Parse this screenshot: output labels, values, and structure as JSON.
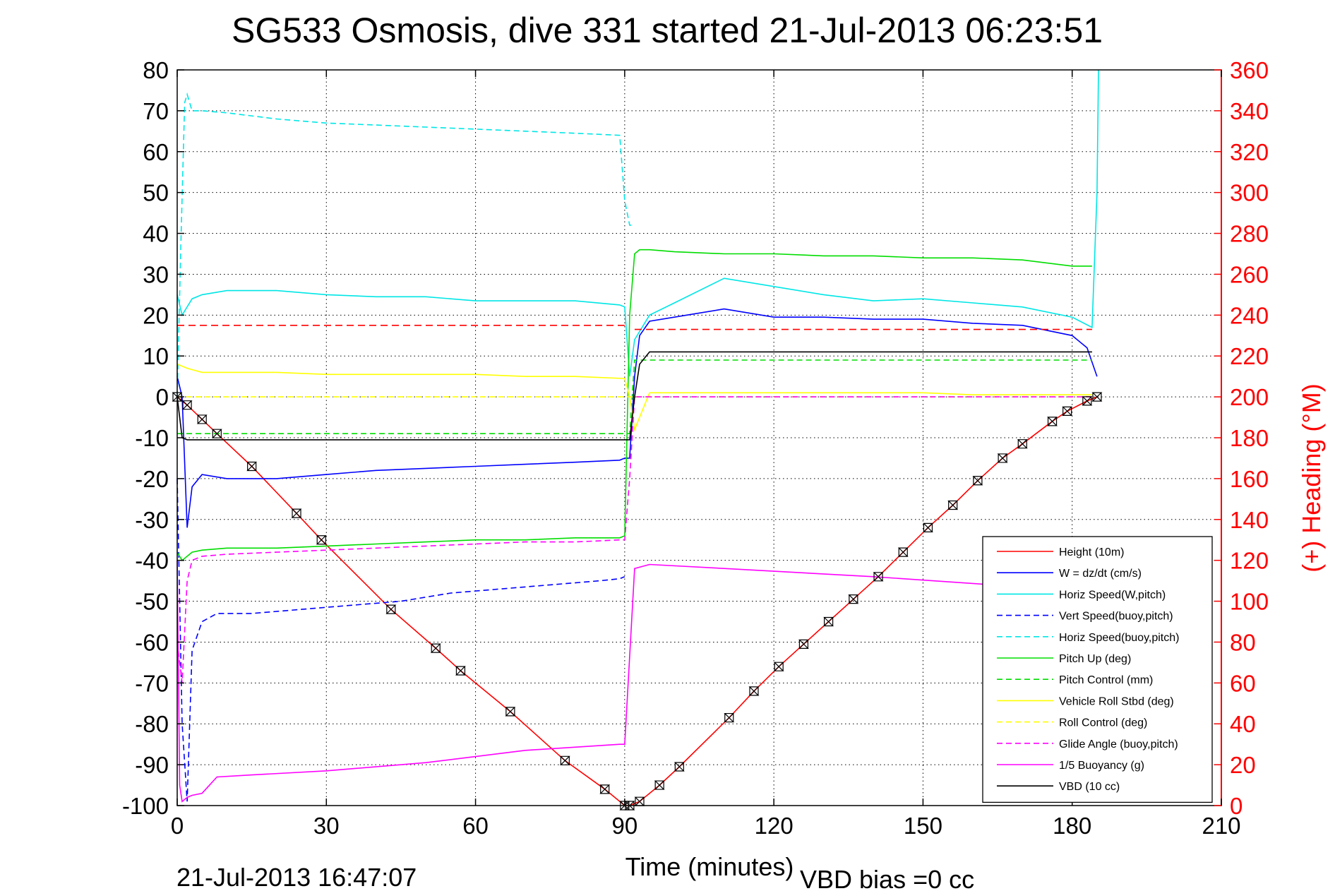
{
  "chart_data": {
    "type": "line",
    "title": "SG533 Osmosis, dive 331 started 21-Jul-2013 06:23:51",
    "xlabel": "Time (minutes)",
    "ylabel_right": "(+) Heading (°M)",
    "footer_date": "21-Jul-2013 16:47:07",
    "footer_vbd": "VBD bias =0 cc",
    "xlim": [
      0,
      210
    ],
    "ylim": [
      -100,
      80
    ],
    "ylim_right": [
      0,
      360
    ],
    "xticks": [
      0,
      30,
      60,
      90,
      120,
      150,
      180,
      210
    ],
    "yticks": [
      -100,
      -90,
      -80,
      -70,
      -60,
      -50,
      -40,
      -30,
      -20,
      -10,
      0,
      10,
      20,
      30,
      40,
      50,
      60,
      70,
      80
    ],
    "yticks_right": [
      0,
      20,
      40,
      60,
      80,
      100,
      120,
      140,
      160,
      180,
      200,
      220,
      240,
      260,
      280,
      300,
      320,
      340,
      360
    ],
    "grid": true,
    "legend_position": "lower-right",
    "heading_mean_dive": 235,
    "heading_mean_climb": 233,
    "series": [
      {
        "name": "Height (10m)",
        "color": "#ff0000",
        "dash": "solid",
        "x": [
          0,
          2,
          5,
          8,
          15,
          24,
          29,
          43,
          52,
          57,
          67,
          78,
          86,
          90,
          91,
          93,
          97,
          101,
          111,
          116,
          121,
          126,
          131,
          136,
          141,
          146,
          151,
          156,
          161,
          166,
          170,
          176,
          179,
          183,
          185
        ],
        "y": [
          0,
          -2,
          -5.5,
          -9,
          -17,
          -28.5,
          -35,
          -52,
          -61.5,
          -67,
          -77,
          -89,
          -96,
          -100,
          -100,
          -99,
          -95,
          -90.5,
          -78.5,
          -72,
          -66,
          -60.5,
          -55,
          -49.5,
          -44,
          -38,
          -32,
          -26.5,
          -20.5,
          -15,
          -11.5,
          -6,
          -3.5,
          -1,
          0
        ]
      },
      {
        "name": "W = dz/dt (cm/s)",
        "color": "#0000ff",
        "dash": "solid",
        "x": [
          0,
          1,
          2,
          3,
          5,
          10,
          20,
          30,
          40,
          50,
          60,
          70,
          80,
          89,
          90,
          91,
          92,
          93,
          95,
          100,
          110,
          120,
          130,
          140,
          150,
          160,
          170,
          180,
          183,
          185
        ],
        "y": [
          5,
          0,
          -32,
          -22,
          -19,
          -20,
          -20,
          -19,
          -18,
          -17.5,
          -17,
          -16.5,
          -16,
          -15.5,
          -15,
          -15,
          5,
          15,
          18.5,
          19.5,
          21.5,
          19.5,
          19.5,
          19,
          19,
          18,
          17.5,
          15,
          12,
          5
        ]
      },
      {
        "name": "Horiz Speed(W,pitch)",
        "color": "#00e6e6",
        "dash": "solid",
        "x": [
          0,
          1,
          3,
          5,
          10,
          20,
          30,
          40,
          50,
          60,
          70,
          80,
          89,
          90,
          91,
          92,
          95,
          100,
          110,
          120,
          130,
          140,
          150,
          160,
          170,
          180,
          184,
          185,
          185.3
        ],
        "y": [
          25,
          20,
          24,
          25,
          26,
          26,
          25,
          24.5,
          24.5,
          23.5,
          23.5,
          23.5,
          22.5,
          22,
          5,
          14,
          20,
          23,
          29,
          27,
          25,
          23.5,
          24,
          23,
          22,
          19.5,
          17,
          50,
          80
        ]
      },
      {
        "name": "Vert Speed(buoy,pitch)",
        "color": "#0000ff",
        "dash": "dashed",
        "x": [
          0,
          1,
          2,
          3,
          5,
          8,
          15,
          25,
          35,
          45,
          55,
          65,
          75,
          85,
          89,
          90
        ],
        "y": [
          -20,
          -80,
          -99,
          -62,
          -55,
          -53,
          -53,
          -52,
          -51,
          -50,
          -48,
          -47,
          -46,
          -45,
          -44.5,
          -44
        ]
      },
      {
        "name": "Horiz Speed(buoy,pitch)",
        "color": "#00e6e6",
        "dash": "dashed",
        "x": [
          0,
          0.8,
          1.5,
          2,
          3,
          5,
          10,
          20,
          30,
          40,
          50,
          60,
          70,
          80,
          89,
          90,
          91,
          92
        ],
        "y": [
          0,
          40,
          72,
          74,
          70,
          70,
          69.5,
          68,
          67,
          66.5,
          66,
          65.5,
          65,
          64.5,
          64,
          48,
          42,
          42
        ]
      },
      {
        "name": "Pitch Up (deg)",
        "color": "#00dd00",
        "dash": "solid",
        "x": [
          0,
          1,
          2,
          3,
          5,
          10,
          20,
          30,
          40,
          50,
          60,
          70,
          80,
          89,
          90,
          91,
          92,
          93,
          95,
          100,
          110,
          120,
          130,
          140,
          150,
          160,
          170,
          180,
          184
        ],
        "y": [
          -38,
          -40,
          -39,
          -38,
          -37.5,
          -37,
          -37,
          -36.5,
          -36,
          -35.5,
          -35,
          -35,
          -34.5,
          -34.5,
          -34,
          20,
          35,
          36,
          36,
          35.5,
          35,
          35,
          34.5,
          34.5,
          34,
          34,
          33.5,
          32,
          32
        ]
      },
      {
        "name": "Pitch Control (mm)",
        "color": "#00dd00",
        "dash": "dashed",
        "x": [
          0,
          1,
          2,
          90,
          91,
          92,
          184
        ],
        "y": [
          -9,
          -9,
          -9,
          -9,
          -9,
          9,
          9
        ]
      },
      {
        "name": "Vehicle Roll Stbd (deg)",
        "color": "#ffff00",
        "dash": "solid",
        "x": [
          0,
          2,
          5,
          10,
          20,
          30,
          40,
          50,
          60,
          70,
          80,
          90,
          91,
          92,
          95,
          100,
          110,
          120,
          130,
          140,
          150,
          160,
          170,
          180,
          184
        ],
        "y": [
          8,
          7,
          6,
          6,
          6,
          5.5,
          5.5,
          5.5,
          5.5,
          5,
          5,
          4.5,
          0,
          -8,
          1,
          1,
          1,
          1,
          1,
          1,
          1,
          0.5,
          0.5,
          0.5,
          0.5
        ]
      },
      {
        "name": "Roll Control (deg)",
        "color": "#ffff00",
        "dash": "dashed",
        "x": [
          0,
          184
        ],
        "y": [
          0,
          0
        ]
      },
      {
        "name": "Glide Angle (buoy,pitch)",
        "color": "#ff00ff",
        "dash": "dashed",
        "x": [
          0,
          1,
          2,
          3,
          5,
          10,
          20,
          30,
          40,
          50,
          60,
          70,
          80,
          89,
          90,
          91,
          92,
          184
        ],
        "y": [
          -60,
          -70,
          -45,
          -40,
          -39,
          -38.5,
          -38,
          -37.5,
          -37,
          -36.5,
          -36,
          -35.5,
          -35.5,
          -35,
          -35,
          -20,
          0,
          0
        ]
      },
      {
        "name": "1/5 Buoyancy (g)",
        "color": "#ff00ff",
        "dash": "solid",
        "x": [
          0,
          0.5,
          1,
          2,
          3,
          5,
          8,
          15,
          30,
          50,
          70,
          89,
          90,
          92,
          95,
          110,
          140,
          170,
          184
        ],
        "y": [
          -40,
          -95,
          -99,
          -98,
          -97.5,
          -97,
          -93,
          -92.5,
          -91.5,
          -89.5,
          -86.5,
          -85,
          -85,
          -42,
          -41,
          -42,
          -44,
          -46.5,
          -47.5
        ]
      },
      {
        "name": "VBD (10 cc)",
        "color": "#000000",
        "dash": "solid",
        "x": [
          0,
          1,
          2,
          90,
          91,
          92,
          93,
          95,
          184
        ],
        "y": [
          0,
          -10,
          -10.5,
          -10.5,
          -10.5,
          0,
          8,
          11,
          11
        ]
      }
    ]
  }
}
